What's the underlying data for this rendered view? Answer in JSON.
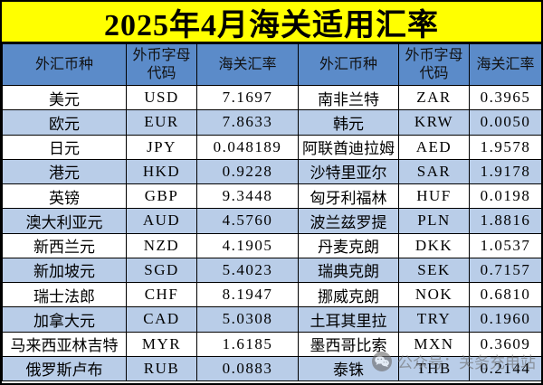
{
  "title": "2025年4月海关适用汇率",
  "table": {
    "column_headers": [
      "外汇币种",
      "外币字母代码",
      "海关汇率",
      "外汇币种",
      "外币字母代码",
      "海关汇率"
    ],
    "rows": [
      {
        "left": {
          "currency": "美元",
          "code": "USD",
          "rate": "7.1697"
        },
        "right": {
          "currency": "南非兰特",
          "code": "ZAR",
          "rate": "0.3965"
        }
      },
      {
        "left": {
          "currency": "欧元",
          "code": "EUR",
          "rate": "7.8633"
        },
        "right": {
          "currency": "韩元",
          "code": "KRW",
          "rate": "0.0050"
        }
      },
      {
        "left": {
          "currency": "日元",
          "code": "JPY",
          "rate": "0.048189"
        },
        "right": {
          "currency": "阿联酋迪拉姆",
          "code": "AED",
          "rate": "1.9578"
        }
      },
      {
        "left": {
          "currency": "港元",
          "code": "HKD",
          "rate": "0.9228"
        },
        "right": {
          "currency": "沙特里亚尔",
          "code": "SAR",
          "rate": "1.9178"
        }
      },
      {
        "left": {
          "currency": "英镑",
          "code": "GBP",
          "rate": "9.3448"
        },
        "right": {
          "currency": "匈牙利福林",
          "code": "HUF",
          "rate": "0.0198"
        }
      },
      {
        "left": {
          "currency": "澳大利亚元",
          "code": "AUD",
          "rate": "4.5760"
        },
        "right": {
          "currency": "波兰兹罗提",
          "code": "PLN",
          "rate": "1.8816"
        }
      },
      {
        "left": {
          "currency": "新西兰元",
          "code": "NZD",
          "rate": "4.1905"
        },
        "right": {
          "currency": "丹麦克朗",
          "code": "DKK",
          "rate": "1.0537"
        }
      },
      {
        "left": {
          "currency": "新加坡元",
          "code": "SGD",
          "rate": "5.4023"
        },
        "right": {
          "currency": "瑞典克朗",
          "code": "SEK",
          "rate": "0.7157"
        }
      },
      {
        "left": {
          "currency": "瑞士法郎",
          "code": "CHF",
          "rate": "8.1947"
        },
        "right": {
          "currency": "挪威克朗",
          "code": "NOK",
          "rate": "0.6810"
        }
      },
      {
        "left": {
          "currency": "加拿大元",
          "code": "CAD",
          "rate": "5.0308"
        },
        "right": {
          "currency": "土耳其里拉",
          "code": "TRY",
          "rate": "0.1960"
        }
      },
      {
        "left": {
          "currency": "马来西亚林吉特",
          "code": "MYR",
          "rate": "1.6185"
        },
        "right": {
          "currency": "墨西哥比索",
          "code": "MXN",
          "rate": "0.3609"
        }
      },
      {
        "left": {
          "currency": "俄罗斯卢布",
          "code": "RUB",
          "rate": "0.0883"
        },
        "right": {
          "currency": "泰铢",
          "code": "THB",
          "rate": "0.2144"
        }
      }
    ]
  },
  "watermark": {
    "icon": "wechat-icon",
    "text": "公众号：关务充电站"
  },
  "colors": {
    "title_bg": "#FFFF00",
    "header_bg": "#5B8BC9",
    "stripe_bg": "#B9CDE8",
    "row_bg": "#FFFFFF",
    "border": "#000000",
    "watermark_gray": "#6E6E6E"
  }
}
